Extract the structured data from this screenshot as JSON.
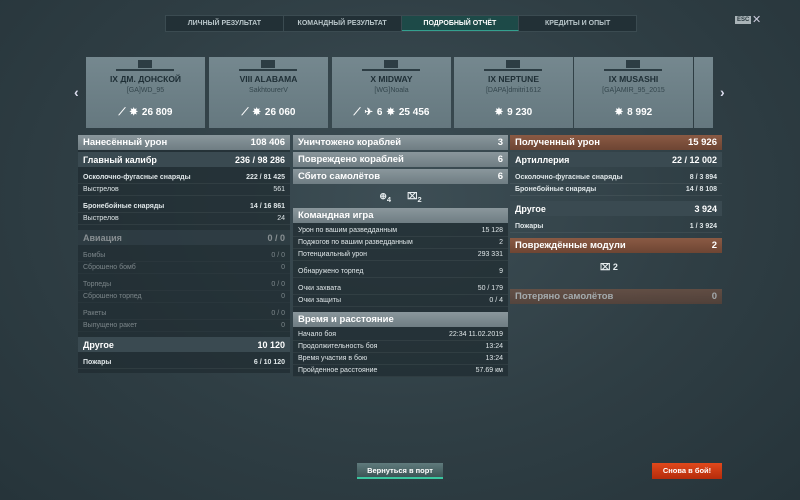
{
  "tabs": [
    {
      "label": "Личный результат"
    },
    {
      "label": "Командный результат"
    },
    {
      "label": "Подробный отчёт",
      "active": true
    },
    {
      "label": "Кредиты и опыт"
    }
  ],
  "esc": {
    "key": "ESC",
    "close": "✕"
  },
  "cards": [
    {
      "tier_name": "IX ДМ. ДОНСКОЙ",
      "player": "[GA]WD_95",
      "ribbons": [
        "torpedo-hit-icon"
      ],
      "damage": "26 809"
    },
    {
      "tier_name": "VIII ALABAMA",
      "player": "SakhtourerV",
      "ribbons": [
        "torpedo-hit-icon"
      ],
      "damage": "26 060"
    },
    {
      "tier_name": "X MIDWAY",
      "player": "[WG]Noala",
      "ribbons": [
        "torpedo-hit-icon",
        "plane-shot-icon"
      ],
      "planes": "6",
      "damage": "25 456"
    },
    {
      "tier_name": "IX NEPTUNE",
      "player": "[DAPA]dmitri1612",
      "ribbons": [],
      "damage": "9 230"
    },
    {
      "tier_name": "IX MUSASHI",
      "player": "[GA]AMIR_95_2015",
      "ribbons": [],
      "damage": "8 992"
    }
  ],
  "left": [
    {
      "t": "h1",
      "label": "Нанесённый урон",
      "value": "108 406"
    },
    {
      "t": "h2",
      "label": "Главный калибр",
      "value": "236 / 98 286"
    },
    {
      "t": "r",
      "b": true,
      "label": "Осколочно-фугасные снаряды",
      "value": "222 / 81 425"
    },
    {
      "t": "r",
      "label": "Выстрелов",
      "value": "561"
    },
    {
      "t": "gap"
    },
    {
      "t": "r",
      "b": true,
      "label": "Бронебойные снаряды",
      "value": "14 / 16 861"
    },
    {
      "t": "r",
      "label": "Выстрелов",
      "value": "24"
    },
    {
      "t": "gap"
    },
    {
      "t": "h2",
      "dim": true,
      "label": "Авиация",
      "value": "0 / 0"
    },
    {
      "t": "r",
      "dim": true,
      "label": "Бомбы",
      "value": "0 / 0"
    },
    {
      "t": "r",
      "dim": true,
      "label": "Сброшено бомб",
      "value": "0"
    },
    {
      "t": "gap",
      "dim": true
    },
    {
      "t": "r",
      "dim": true,
      "label": "Торпеды",
      "value": "0 / 0"
    },
    {
      "t": "r",
      "dim": true,
      "label": "Сброшено торпед",
      "value": "0"
    },
    {
      "t": "gap"
    },
    {
      "t": "r",
      "dim": true,
      "label": "Ракеты",
      "value": "0 / 0"
    },
    {
      "t": "r",
      "dim": true,
      "label": "Выпущено ракет",
      "value": "0"
    },
    {
      "t": "gap"
    },
    {
      "t": "h2",
      "label": "Другое",
      "value": "10 120"
    },
    {
      "t": "r",
      "b": true,
      "label": "Пожары",
      "value": "6 / 10 120"
    }
  ],
  "middle_top": [
    {
      "t": "h1",
      "label": "Уничтожено кораблей",
      "value": "3"
    },
    {
      "t": "h1",
      "label": "Повреждено кораблей",
      "value": "6"
    },
    {
      "t": "h1",
      "label": "Сбито самолётов",
      "value": "6"
    }
  ],
  "middle_icons": {
    "spotted": "4",
    "captured": "2"
  },
  "middle": [
    {
      "t": "h1",
      "label": "Командная игра",
      "value": ""
    },
    {
      "t": "r",
      "label": "Урон по вашим разведданным",
      "value": "15 128"
    },
    {
      "t": "r",
      "label": "Поджогов по вашим разведданным",
      "value": "2"
    },
    {
      "t": "r",
      "label": "Потенциальный урон",
      "value": "293 331"
    },
    {
      "t": "gap"
    },
    {
      "t": "r",
      "label": "Обнаружено торпед",
      "value": "9"
    },
    {
      "t": "gap"
    },
    {
      "t": "r",
      "label": "Очки захвата",
      "value": "50 / 179"
    },
    {
      "t": "r",
      "label": "Очки защиты",
      "value": "0 / 4"
    },
    {
      "t": "gap"
    },
    {
      "t": "h1",
      "label": "Время и расстояние",
      "value": ""
    },
    {
      "t": "r",
      "label": "Начало боя",
      "value": "22:34  11.02.2019"
    },
    {
      "t": "r",
      "label": "Продолжительность боя",
      "value": "13:24"
    },
    {
      "t": "r",
      "label": "Время участия в бою",
      "value": "13:24"
    },
    {
      "t": "r",
      "label": "Пройденное расстояние",
      "value": "57.69 км"
    }
  ],
  "right": [
    {
      "t": "h1",
      "brown": true,
      "label": "Полученный урон",
      "value": "15 926"
    },
    {
      "t": "h2",
      "label": "Артиллерия",
      "value": "22 / 12 002"
    },
    {
      "t": "r",
      "b": true,
      "label": "Осколочно-фугасные снаряды",
      "value": "8 / 3 894"
    },
    {
      "t": "r",
      "b": true,
      "label": "Бронебойные снаряды",
      "value": "14 / 8 108"
    },
    {
      "t": "gap"
    },
    {
      "t": "h2",
      "label": "Другое",
      "value": "3 924"
    },
    {
      "t": "r",
      "b": true,
      "label": "Пожары",
      "value": "1 / 3 924"
    },
    {
      "t": "gap"
    },
    {
      "t": "h1",
      "brown": true,
      "label": "Повреждённые модули",
      "value": "2"
    }
  ],
  "right_modules": {
    "count": "2"
  },
  "right_bottom": {
    "label": "Потеряно самолётов",
    "value": "0"
  },
  "buttons": {
    "port": "Вернуться в порт",
    "battle": "Снова в бой!"
  }
}
